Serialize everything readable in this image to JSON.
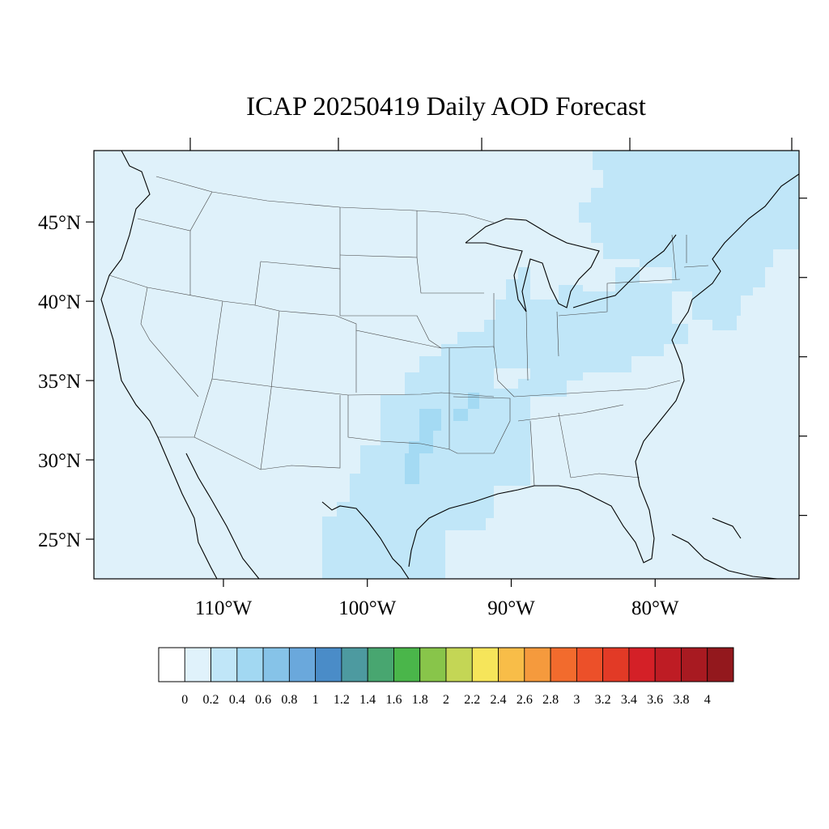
{
  "title": "ICAP 20250419 Daily AOD Forecast",
  "map": {
    "lon_range": [
      -119,
      -70
    ],
    "lat_range": [
      22.5,
      49.5
    ],
    "background_color": "#dff1fa",
    "lat_ticks": [
      {
        "lat": 45,
        "label": "45°N"
      },
      {
        "lat": 40,
        "label": "40°N"
      },
      {
        "lat": 35,
        "label": "35°N"
      },
      {
        "lat": 30,
        "label": "30°N"
      },
      {
        "lat": 25,
        "label": "25°N"
      }
    ],
    "lon_ticks": [
      {
        "lon": -110,
        "label": "110°W"
      },
      {
        "lon": -100,
        "label": "100°W"
      },
      {
        "lon": -90,
        "label": "90°W"
      },
      {
        "lon": -80,
        "label": "80°W"
      }
    ],
    "aod_regions": [
      {
        "name": "aod-plume-south-central",
        "bin": "0.2-0.4",
        "color": "#c0e6f8"
      },
      {
        "name": "aod-plume-northeast",
        "bin": "0.2-0.4",
        "color": "#c0e6f8"
      },
      {
        "name": "aod-plume-midwest",
        "bin": "0.2-0.4",
        "color": "#c0e6f8"
      },
      {
        "name": "aod-core-texas",
        "bin": "0.4-0.6",
        "color": "#a4daf3"
      },
      {
        "name": "aod-core-arkansas",
        "bin": "0.4-0.6",
        "color": "#a4daf3"
      }
    ]
  },
  "colorbar": {
    "colors": [
      "#ffffff",
      "#e0f2fb",
      "#c0e6f8",
      "#a2d8f2",
      "#86c3e8",
      "#6aa8dc",
      "#4a8cc8",
      "#4d9aa0",
      "#48a670",
      "#4ab64a",
      "#88c54a",
      "#c4d655",
      "#f6e55a",
      "#f8bd48",
      "#f59a3d",
      "#f26b2d",
      "#ec5029",
      "#e23a26",
      "#d42027",
      "#be1c24",
      "#a81a21",
      "#93181d"
    ],
    "labels": [
      "0",
      "0.2",
      "0.4",
      "0.6",
      "0.8",
      "1",
      "1.2",
      "1.4",
      "1.6",
      "1.8",
      "2",
      "2.2",
      "2.4",
      "2.6",
      "2.8",
      "3",
      "3.2",
      "3.4",
      "3.6",
      "3.8",
      "4"
    ]
  }
}
